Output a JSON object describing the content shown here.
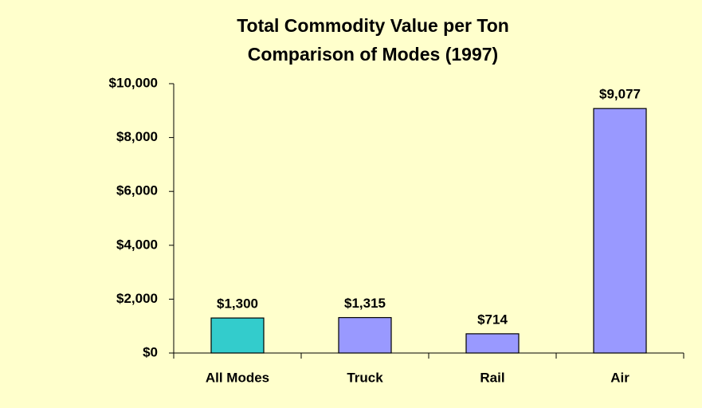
{
  "chart_data": {
    "type": "bar",
    "title": "Total Commodity Value per Ton",
    "subtitle": "Comparison of Modes (1997)",
    "categories": [
      "All Modes",
      "Truck",
      "Rail",
      "Air"
    ],
    "values": [
      1300,
      1315,
      714,
      9077
    ],
    "value_labels": [
      "$1,300",
      "$1,315",
      "$714",
      "$9,077"
    ],
    "colors": [
      "#33cccc",
      "#9999ff",
      "#9999ff",
      "#9999ff"
    ],
    "ylim": [
      0,
      10000
    ],
    "yticks": [
      {
        "value": 0,
        "label": "$0"
      },
      {
        "value": 2000,
        "label": "$2,000"
      },
      {
        "value": 4000,
        "label": "$4,000"
      },
      {
        "value": 6000,
        "label": "$6,000"
      },
      {
        "value": 8000,
        "label": "$8,000"
      },
      {
        "value": 10000,
        "label": "$10,000"
      }
    ],
    "grid": false
  }
}
